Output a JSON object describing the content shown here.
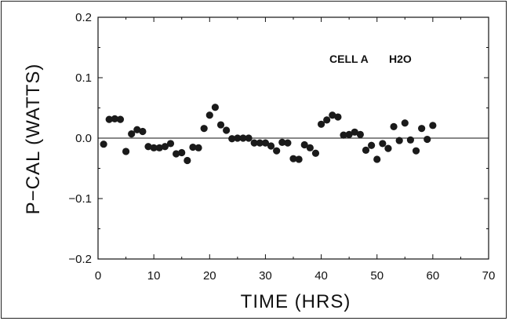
{
  "chart_data": {
    "type": "scatter",
    "title": "",
    "xlabel": "TIME  (HRS)",
    "ylabel": "P−CAL (WATTS)",
    "annotations": [
      "CELL A",
      "H2O"
    ],
    "xlim": [
      0,
      70
    ],
    "ylim": [
      -0.2,
      0.2
    ],
    "x_ticks": [
      0,
      10,
      20,
      30,
      40,
      50,
      60,
      70
    ],
    "y_ticks": [
      0.2,
      0.1,
      0.0,
      -0.1,
      -0.2
    ],
    "y_tick_labels": [
      "0.2",
      "0.1",
      "0.0",
      "−0.1",
      "−0.2"
    ],
    "reference_line_y": 0.0,
    "grid": false,
    "x": [
      1,
      2,
      3,
      4,
      5,
      6,
      7,
      8,
      9,
      10,
      11,
      12,
      13,
      14,
      15,
      16,
      17,
      18,
      19,
      20,
      21,
      22,
      23,
      24,
      25,
      26,
      27,
      28,
      29,
      30,
      31,
      32,
      33,
      34,
      35,
      36,
      37,
      38,
      39,
      40,
      41,
      42,
      43,
      44,
      45,
      46,
      47,
      48,
      49,
      50,
      51,
      52,
      53,
      54,
      55,
      56,
      57,
      58,
      59,
      60
    ],
    "y": [
      -0.01,
      0.031,
      0.032,
      0.031,
      -0.022,
      0.007,
      0.014,
      0.011,
      -0.014,
      -0.016,
      -0.016,
      -0.014,
      -0.009,
      -0.026,
      -0.024,
      -0.037,
      -0.015,
      -0.016,
      0.016,
      0.038,
      0.051,
      0.022,
      0.013,
      -0.001,
      0,
      0,
      0,
      -0.008,
      -0.008,
      -0.008,
      -0.013,
      -0.021,
      -0.007,
      -0.008,
      -0.034,
      -0.035,
      -0.011,
      -0.016,
      -0.025,
      0.023,
      0.03,
      0.038,
      0.035,
      0.005,
      0.006,
      0.01,
      0.006,
      -0.02,
      -0.012,
      -0.035,
      -0.009,
      -0.017,
      0.019,
      -0.004,
      0.025,
      -0.003,
      -0.021,
      0.016,
      -0.002,
      0.021
    ]
  }
}
